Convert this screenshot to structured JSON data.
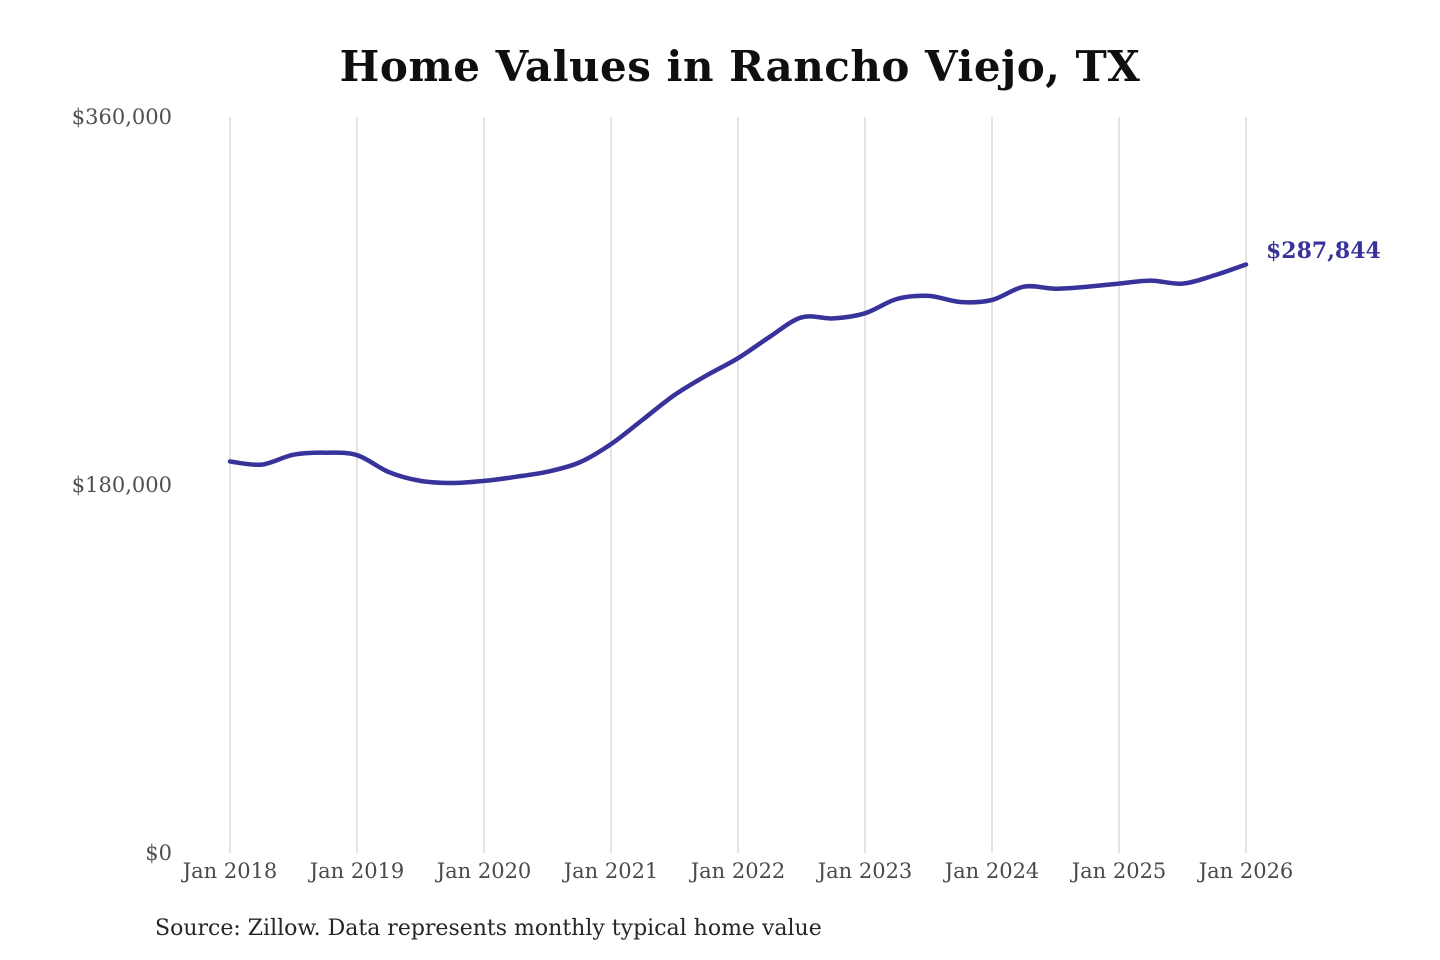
{
  "title": "Home Values in Rancho Viejo, TX",
  "annotation": {
    "end_label": "$287,844"
  },
  "source": "Source: Zillow. Data represents monthly typical home value",
  "colors": {
    "line": "#38339b",
    "end_label": "#38339b",
    "grid": "#c9c9c9",
    "tick_text": "#4a4a4a",
    "title_text": "#0f0f0f",
    "source_text": "#262626"
  },
  "chart_data": {
    "type": "line",
    "title": "Home Values in Rancho Viejo, TX",
    "xlabel": "",
    "ylabel": "",
    "ylim": [
      0,
      360000
    ],
    "grid": "vertical-only",
    "legend": "none",
    "x_ticks": [
      "Jan 2018",
      "Jan 2019",
      "Jan 2020",
      "Jan 2021",
      "Jan 2022",
      "Jan 2023",
      "Jan 2024",
      "Jan 2025",
      "Jan 2026"
    ],
    "y_ticks": [
      {
        "label": "$0",
        "value": 0
      },
      {
        "label": "$180,000",
        "value": 180000
      },
      {
        "label": "$360,000",
        "value": 360000
      }
    ],
    "series": [
      {
        "name": "Monthly typical home value",
        "end_value": 287844,
        "points": [
          [
            "2018-01",
            191500
          ],
          [
            "2018-04",
            190000
          ],
          [
            "2018-07",
            194800
          ],
          [
            "2018-10",
            195800
          ],
          [
            "2019-01",
            194600
          ],
          [
            "2019-04",
            186300
          ],
          [
            "2019-07",
            182000
          ],
          [
            "2019-10",
            181000
          ],
          [
            "2020-01",
            182000
          ],
          [
            "2020-04",
            184000
          ],
          [
            "2020-07",
            186500
          ],
          [
            "2020-10",
            191000
          ],
          [
            "2021-01",
            200000
          ],
          [
            "2021-04",
            212000
          ],
          [
            "2021-07",
            224000
          ],
          [
            "2021-10",
            233500
          ],
          [
            "2022-01",
            242000
          ],
          [
            "2022-04",
            252500
          ],
          [
            "2022-07",
            262000
          ],
          [
            "2022-10",
            261500
          ],
          [
            "2023-01",
            264000
          ],
          [
            "2023-04",
            271000
          ],
          [
            "2023-07",
            272500
          ],
          [
            "2023-10",
            269500
          ],
          [
            "2024-01",
            270500
          ],
          [
            "2024-04",
            277000
          ],
          [
            "2024-07",
            276000
          ],
          [
            "2024-10",
            277000
          ],
          [
            "2025-01",
            278500
          ],
          [
            "2025-04",
            280000
          ],
          [
            "2025-07",
            278500
          ],
          [
            "2025-10",
            282500
          ],
          [
            "2026-01",
            287844
          ]
        ]
      }
    ]
  }
}
